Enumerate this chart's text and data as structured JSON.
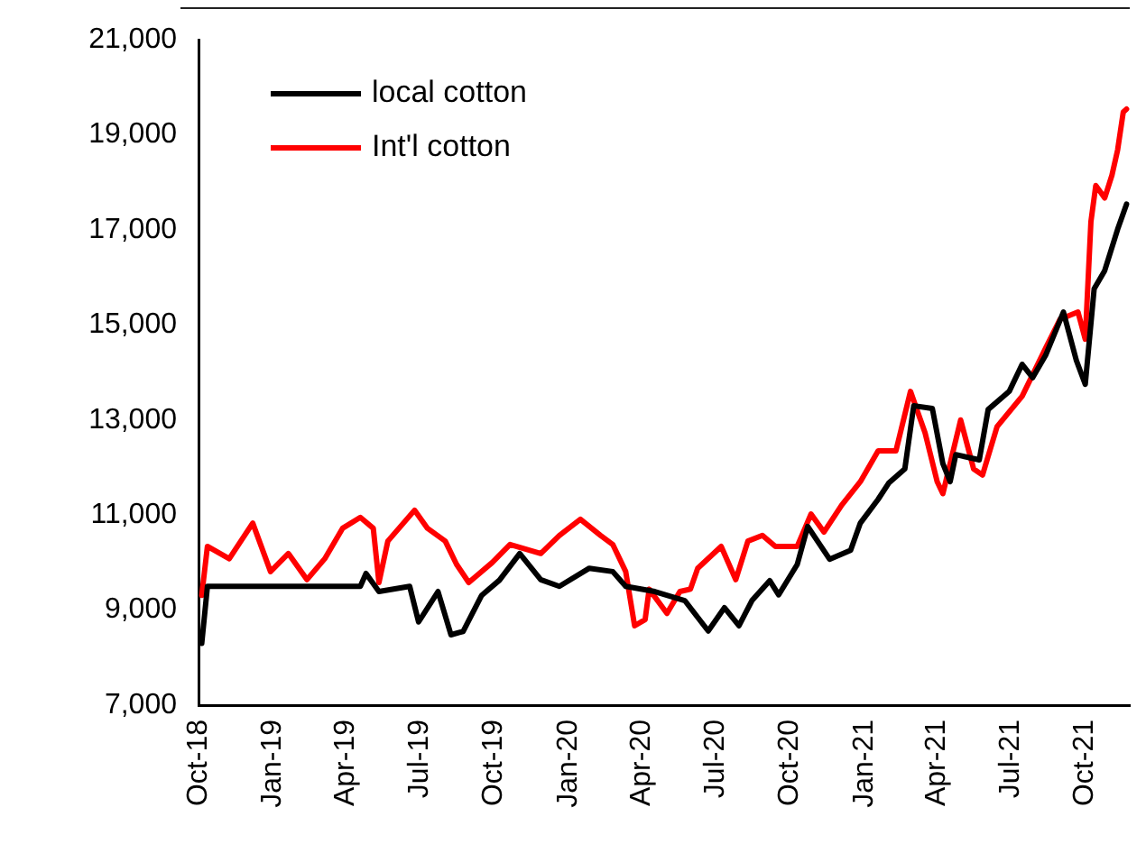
{
  "chart_data": {
    "type": "line",
    "xlim": [
      "2018-10-01",
      "2021-11-25"
    ],
    "xticks": [
      {
        "value": "2018-10-01",
        "label": "Oct-18"
      },
      {
        "value": "2019-01-01",
        "label": "Jan-19"
      },
      {
        "value": "2019-04-01",
        "label": "Apr-19"
      },
      {
        "value": "2019-07-01",
        "label": "Jul-19"
      },
      {
        "value": "2019-10-01",
        "label": "Oct-19"
      },
      {
        "value": "2020-01-01",
        "label": "Jan-20"
      },
      {
        "value": "2020-04-01",
        "label": "Apr-20"
      },
      {
        "value": "2020-07-01",
        "label": "Jul-20"
      },
      {
        "value": "2020-10-01",
        "label": "Oct-20"
      },
      {
        "value": "2021-01-01",
        "label": "Jan-21"
      },
      {
        "value": "2021-04-01",
        "label": "Apr-21"
      },
      {
        "value": "2021-07-01",
        "label": "Jul-21"
      },
      {
        "value": "2021-10-01",
        "label": "Oct-21"
      }
    ],
    "ylim": [
      7000,
      21000
    ],
    "yticks": [
      {
        "value": 7000,
        "label": "7,000"
      },
      {
        "value": 9000,
        "label": "9,000"
      },
      {
        "value": 11000,
        "label": "11,000"
      },
      {
        "value": 13000,
        "label": "13,000"
      },
      {
        "value": 15000,
        "label": "15,000"
      },
      {
        "value": 17000,
        "label": "17,000"
      },
      {
        "value": 19000,
        "label": "19,000"
      },
      {
        "value": 21000,
        "label": "21,000"
      }
    ],
    "grid": false,
    "legend": "top left",
    "marker": "none",
    "line_style": "solid",
    "series": [
      {
        "name": "local cotton",
        "color": "#000000",
        "x": [
          "2018-10-05",
          "2018-10-12",
          "2019-04-19",
          "2019-04-26",
          "2019-05-12",
          "2019-06-19",
          "2019-06-30",
          "2019-07-24",
          "2019-08-09",
          "2019-08-24",
          "2019-09-16",
          "2019-10-08",
          "2019-11-02",
          "2019-11-28",
          "2019-12-21",
          "2020-01-27",
          "2020-02-25",
          "2020-03-12",
          "2020-04-17",
          "2020-05-24",
          "2020-06-22",
          "2020-07-12",
          "2020-07-30",
          "2020-08-15",
          "2020-09-06",
          "2020-09-17",
          "2020-10-10",
          "2020-10-23",
          "2020-11-19",
          "2020-12-15",
          "2020-12-27",
          "2021-01-18",
          "2021-01-31",
          "2021-02-20",
          "2021-03-03",
          "2021-03-26",
          "2021-04-08",
          "2021-04-17",
          "2021-04-24",
          "2021-05-23",
          "2021-06-03",
          "2021-06-29",
          "2021-07-15",
          "2021-07-28",
          "2021-08-13",
          "2021-09-04",
          "2021-09-20",
          "2021-10-01",
          "2021-10-12",
          "2021-10-25",
          "2021-11-10",
          "2021-11-21"
        ],
        "values": [
          8300,
          9500,
          9500,
          9770,
          9390,
          9500,
          8750,
          9390,
          8480,
          8550,
          9310,
          9630,
          10190,
          9640,
          9500,
          9880,
          9810,
          9500,
          9390,
          9200,
          8560,
          9050,
          8670,
          9200,
          9620,
          9320,
          9960,
          10760,
          10070,
          10260,
          10830,
          11330,
          11670,
          11970,
          13300,
          13240,
          12080,
          11700,
          12270,
          12160,
          13220,
          13600,
          14170,
          13890,
          14360,
          15270,
          14250,
          13750,
          15760,
          16140,
          17010,
          17540
        ]
      },
      {
        "name": "Int'l cotton",
        "color": "#ff0000",
        "x": [
          "2018-10-05",
          "2018-10-12",
          "2018-11-08",
          "2018-12-07",
          "2018-12-29",
          "2019-01-20",
          "2019-02-12",
          "2019-03-06",
          "2019-03-28",
          "2019-04-19",
          "2019-05-05",
          "2019-05-12",
          "2019-05-23",
          "2019-06-25",
          "2019-07-11",
          "2019-08-02",
          "2019-08-16",
          "2019-08-31",
          "2019-09-29",
          "2019-10-21",
          "2019-11-28",
          "2019-12-21",
          "2020-01-16",
          "2020-02-10",
          "2020-02-25",
          "2020-03-12",
          "2020-03-23",
          "2020-04-05",
          "2020-04-10",
          "2020-05-02",
          "2020-05-18",
          "2020-05-31",
          "2020-06-09",
          "2020-07-08",
          "2020-07-26",
          "2020-08-10",
          "2020-08-28",
          "2020-09-13",
          "2020-10-10",
          "2020-10-27",
          "2020-11-12",
          "2020-12-04",
          "2020-12-27",
          "2021-01-18",
          "2021-02-09",
          "2021-02-27",
          "2021-03-17",
          "2021-04-01",
          "2021-04-08",
          "2021-04-30",
          "2021-05-16",
          "2021-05-27",
          "2021-06-14",
          "2021-07-15",
          "2021-08-13",
          "2021-08-31",
          "2021-09-22",
          "2021-10-01",
          "2021-10-08",
          "2021-10-14",
          "2021-10-25",
          "2021-11-03",
          "2021-11-10",
          "2021-11-17",
          "2021-11-21"
        ],
        "values": [
          9310,
          10340,
          10080,
          10830,
          9810,
          10190,
          9640,
          10080,
          10720,
          10950,
          10720,
          9580,
          10450,
          11100,
          10720,
          10450,
          9960,
          9580,
          10000,
          10380,
          10190,
          10570,
          10910,
          10570,
          10380,
          9810,
          8670,
          8800,
          9440,
          8930,
          9390,
          9440,
          9880,
          10340,
          9640,
          10450,
          10570,
          10340,
          10340,
          11020,
          10640,
          11210,
          11700,
          12350,
          12350,
          13600,
          12730,
          11700,
          11450,
          13000,
          11970,
          11840,
          12860,
          13500,
          14510,
          15120,
          15270,
          14700,
          17170,
          17930,
          17670,
          18150,
          18680,
          19480,
          19540
        ]
      }
    ]
  }
}
